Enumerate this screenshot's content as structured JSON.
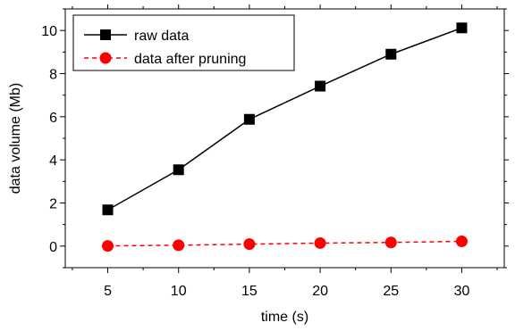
{
  "chart_data": {
    "type": "line",
    "title": "",
    "xlabel": "time (s)",
    "ylabel": "data volume (Mb)",
    "x": [
      5,
      10,
      15,
      20,
      25,
      30
    ],
    "xlim": [
      2,
      33
    ],
    "ylim": [
      -1,
      11
    ],
    "x_ticks": [
      5,
      10,
      15,
      20,
      25,
      30
    ],
    "y_ticks": [
      0,
      2,
      4,
      6,
      8,
      10
    ],
    "grid": false,
    "legend_position": "top-left",
    "series": [
      {
        "name": "raw data",
        "values": [
          1.68,
          3.54,
          5.88,
          7.42,
          8.9,
          10.12
        ],
        "color": "#000000",
        "line_style": "solid",
        "marker": "square"
      },
      {
        "name": "data after pruning",
        "values": [
          0.01,
          0.04,
          0.09,
          0.14,
          0.17,
          0.22
        ],
        "color": "#ff0000",
        "line_style": "dashed",
        "marker": "circle"
      }
    ]
  }
}
